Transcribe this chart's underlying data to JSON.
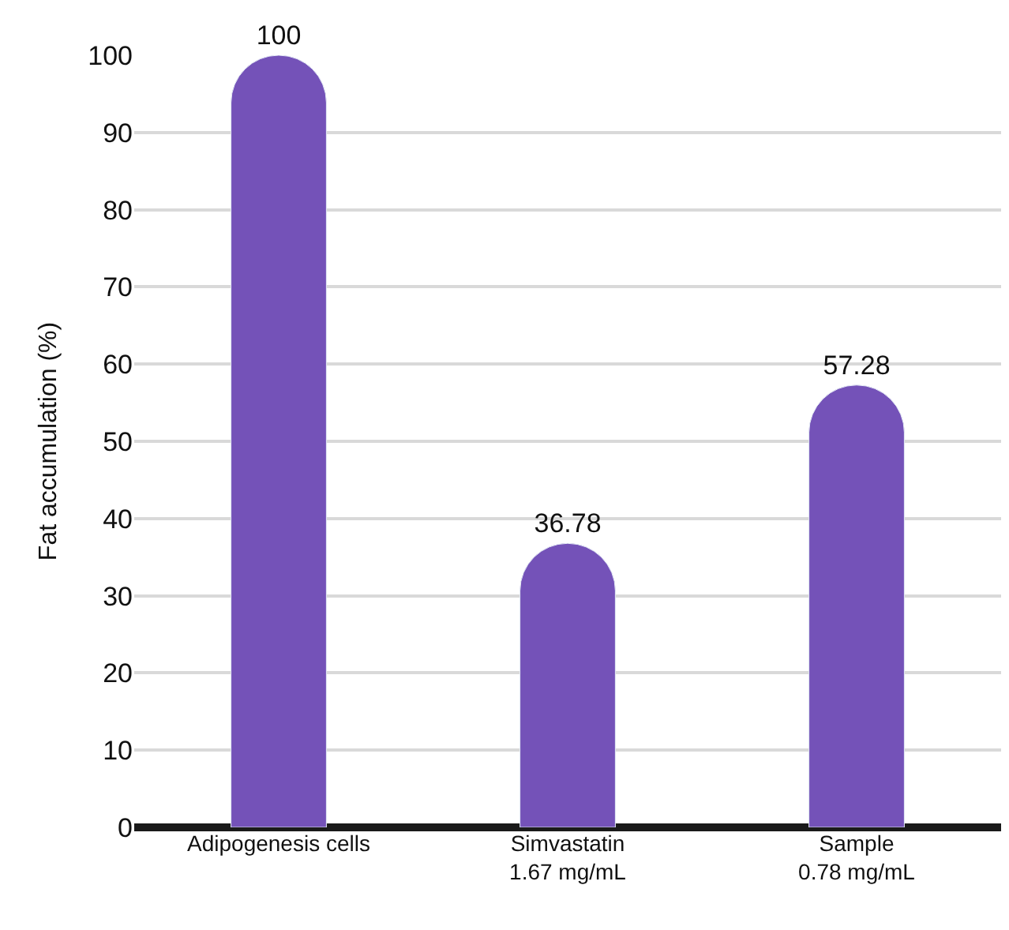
{
  "chart_data": {
    "type": "bar",
    "ylabel": "Fat accumulation (%)",
    "categories": [
      "Adipogenesis cells",
      "Simvastatin\n1.67 mg/mL",
      "Sample\n0.78 mg/mL"
    ],
    "values": [
      100,
      36.78,
      57.28
    ],
    "color": "#7452b8",
    "ylim": [
      0,
      100
    ],
    "yticks": [
      0,
      10,
      20,
      30,
      40,
      50,
      60,
      70,
      80,
      90,
      100
    ],
    "grid": "y",
    "data_labels": true
  }
}
